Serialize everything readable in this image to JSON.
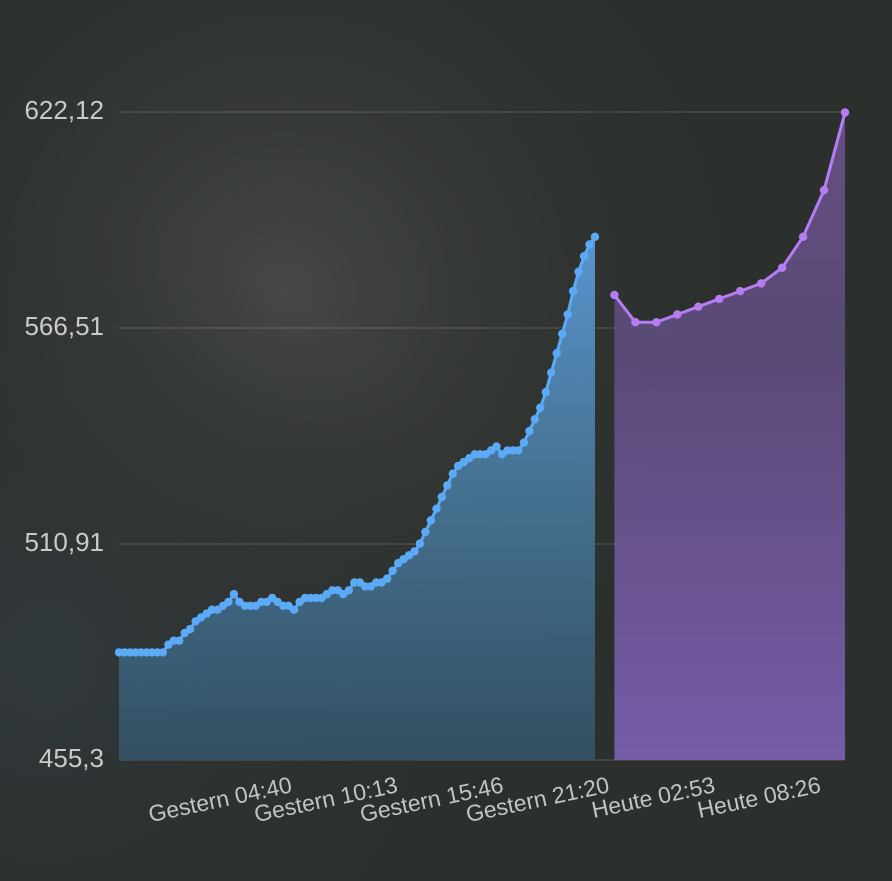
{
  "chart_data": {
    "type": "area",
    "y_ticks": [
      "622,12",
      "566,51",
      "510,91",
      "455,3"
    ],
    "y_tick_values": [
      622.12,
      566.51,
      510.91,
      455.3
    ],
    "ylim": [
      455.3,
      622.12
    ],
    "x_ticks": [
      "Gestern 04:40",
      "Gestern 10:13",
      "Gestern 15:46",
      "Gestern 21:20",
      "Heute 02:53",
      "Heute 08:26"
    ],
    "x_tick_hours": [
      4.67,
      10.22,
      15.77,
      21.33,
      26.88,
      32.43
    ],
    "series": [
      {
        "color": "#5aaaf7",
        "x": [
          0.0,
          0.29,
          0.58,
          0.86,
          1.15,
          1.44,
          1.72,
          2.01,
          2.3,
          2.59,
          2.87,
          3.16,
          3.45,
          3.73,
          4.02,
          4.31,
          4.6,
          4.88,
          5.17,
          5.46,
          5.74,
          6.03,
          6.32,
          6.61,
          6.89,
          7.18,
          7.47,
          7.75,
          8.04,
          8.33,
          8.62,
          8.9,
          9.19,
          9.48,
          9.76,
          10.05,
          10.34,
          10.63,
          10.91,
          11.2,
          11.49,
          11.77,
          12.06,
          12.35,
          12.64,
          12.92,
          13.21,
          13.5,
          13.78,
          14.07,
          14.36,
          14.65,
          14.93,
          15.22,
          15.51,
          15.79,
          16.08,
          16.37,
          16.66,
          16.94,
          17.23,
          17.52,
          17.8,
          18.09,
          18.38,
          18.67,
          18.95,
          19.24,
          19.53,
          19.81,
          20.1,
          20.39,
          20.68,
          20.96,
          21.25,
          21.54,
          21.82,
          22.11,
          22.4,
          22.68,
          22.97,
          23.26,
          23.55,
          23.83,
          24.12,
          24.41,
          24.69,
          24.98
        ],
        "values": [
          483,
          483,
          483,
          483,
          483,
          483,
          483,
          483,
          483,
          485,
          486,
          486,
          488,
          489,
          491,
          492,
          493,
          494,
          494,
          495,
          496,
          498,
          496,
          495,
          495,
          495,
          496,
          496,
          497,
          496,
          495,
          495,
          494,
          496,
          497,
          497,
          497,
          497,
          498,
          499,
          499,
          498,
          499,
          501,
          501,
          500,
          500,
          501,
          501,
          502,
          504,
          506,
          507,
          508,
          509,
          511,
          514,
          517,
          520,
          523,
          526,
          529,
          531,
          532,
          533,
          534,
          534,
          534,
          535,
          536,
          534,
          535,
          535,
          535,
          537,
          540,
          543,
          546,
          550,
          555,
          560,
          565,
          570,
          576,
          581,
          585,
          588,
          590
        ]
      },
      {
        "color": "#b57cf4",
        "x": [
          26.0,
          27.1,
          28.2,
          29.3,
          30.4,
          31.5,
          32.6,
          33.7,
          34.8,
          35.9,
          37.0,
          38.1
        ],
        "values": [
          575,
          568,
          568,
          570,
          572,
          574,
          576,
          578,
          582,
          590,
          602,
          622
        ]
      }
    ],
    "grid": true,
    "legend": "none"
  }
}
